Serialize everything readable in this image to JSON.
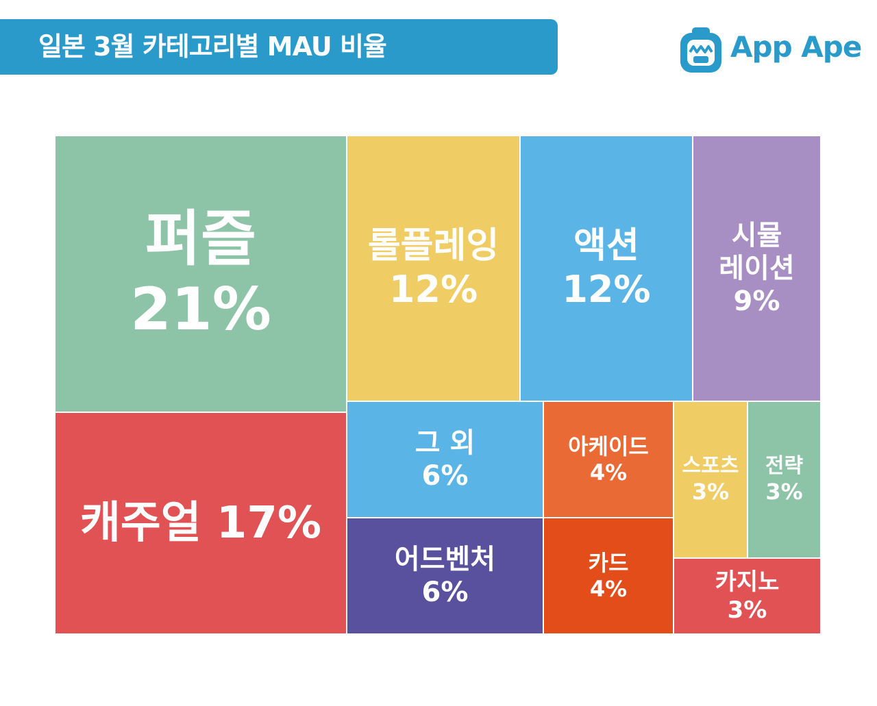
{
  "title": "일본 3월 카테고리별 MAU 비율",
  "brand": {
    "name": "App Ape",
    "icon": "app-ape-logo-icon",
    "color": "#2a9acb"
  },
  "chart_data": {
    "type": "treemap",
    "title": "일본 3월 카테고리별 MAU 비율",
    "unit": "%",
    "items": [
      {
        "label": "퍼즐",
        "value": 21,
        "display": "21%",
        "color": "#8dc4a7"
      },
      {
        "label": "캐주얼",
        "value": 17,
        "display": "17%",
        "color": "#e05254"
      },
      {
        "label": "롤플레잉",
        "value": 12,
        "display": "12%",
        "color": "#f0cc64"
      },
      {
        "label": "액션",
        "value": 12,
        "display": "12%",
        "color": "#5ab4e5"
      },
      {
        "label": "시뮬레이션",
        "label_lines": [
          "시뮬",
          "레이션"
        ],
        "value": 9,
        "display": "9%",
        "color": "#a88fc3"
      },
      {
        "label": "그 외",
        "value": 6,
        "display": "6%",
        "color": "#5ab4e5"
      },
      {
        "label": "어드벤처",
        "value": 6,
        "display": "6%",
        "color": "#59509e"
      },
      {
        "label": "아케이드",
        "value": 4,
        "display": "4%",
        "color": "#ea6a35"
      },
      {
        "label": "카드",
        "value": 4,
        "display": "4%",
        "color": "#e24d1a"
      },
      {
        "label": "스포츠",
        "value": 3,
        "display": "3%",
        "color": "#f0cc64"
      },
      {
        "label": "전략",
        "value": 3,
        "display": "3%",
        "color": "#8dc4a7"
      },
      {
        "label": "카지노",
        "value": 3,
        "display": "3%",
        "color": "#e05254"
      }
    ]
  }
}
